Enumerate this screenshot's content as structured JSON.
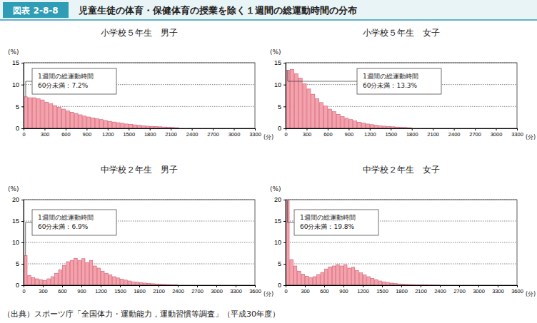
{
  "header": {
    "label": "図表 2-8-8",
    "title": "児童生徒の体育・保健体育の授業を除く１週間の総運動時間の分布"
  },
  "source": "（出典）スポーツ庁「全国体力・運動能力，運動習慣等調査」（平成30年度）",
  "chart_data": [
    {
      "type": "histogram",
      "title": "小学校５年生　男子",
      "y_label": "(%)",
      "x_label": "(分)",
      "annotation": [
        "1週間の総運動時間",
        "60分未満：7.2%"
      ],
      "bins": [
        0,
        60,
        120,
        180,
        240,
        300,
        360,
        420,
        480,
        540,
        600,
        660,
        720,
        780,
        840,
        900,
        960,
        1020,
        1080,
        1140,
        1200,
        1260,
        1320,
        1380,
        1440,
        1500,
        1560,
        1620,
        1680,
        1740,
        1800,
        1860,
        1920,
        1980,
        2040,
        2100,
        2160,
        2220
      ],
      "values": [
        7.2,
        7.0,
        7.0,
        6.8,
        6.5,
        6.0,
        5.6,
        5.2,
        4.8,
        4.4,
        4.0,
        3.7,
        3.4,
        3.1,
        2.8,
        2.6,
        2.4,
        2.2,
        2.0,
        1.8,
        1.6,
        1.45,
        1.3,
        1.15,
        1.0,
        0.9,
        0.8,
        0.7,
        0.6,
        0.5,
        0.45,
        0.4,
        0.35,
        0.3,
        0.25,
        0.2,
        0.15
      ],
      "color": "#f4a3ad",
      "xlim": [
        0,
        3300
      ],
      "xticks": [
        0,
        300,
        600,
        900,
        1200,
        1500,
        1800,
        2100,
        2400,
        2700,
        3000,
        3300
      ],
      "ylim": [
        0,
        15
      ],
      "yticks": [
        0,
        5,
        10,
        15
      ],
      "grid": true
    },
    {
      "type": "histogram",
      "title": "小学校５年生　女子",
      "y_label": "(%)",
      "x_label": "(分)",
      "annotation": [
        "1週間の総運動時間",
        "60分未満：13.3%"
      ],
      "bins": [
        0,
        60,
        120,
        180,
        240,
        300,
        360,
        420,
        480,
        540,
        600,
        660,
        720,
        780,
        840,
        900,
        960,
        1020,
        1080,
        1140,
        1200,
        1260,
        1320,
        1380,
        1440,
        1500,
        1560,
        1620,
        1680,
        1740,
        1800
      ],
      "values": [
        13.3,
        13.5,
        12.5,
        11.5,
        10.2,
        9.0,
        7.8,
        6.8,
        5.9,
        5.1,
        4.4,
        3.8,
        3.2,
        2.7,
        2.3,
        2.0,
        1.7,
        1.4,
        1.2,
        1.0,
        0.85,
        0.7,
        0.6,
        0.5,
        0.4,
        0.35,
        0.3,
        0.25,
        0.2,
        0.15
      ],
      "color": "#f4a3ad",
      "xlim": [
        0,
        3300
      ],
      "xticks": [
        0,
        300,
        600,
        900,
        1200,
        1500,
        1800,
        2100,
        2400,
        2700,
        3000,
        3300
      ],
      "ylim": [
        0,
        15
      ],
      "yticks": [
        0,
        5,
        10,
        15
      ],
      "grid": true
    },
    {
      "type": "histogram",
      "title": "中学校２年生　男子",
      "y_label": "(%)",
      "x_label": "(分)",
      "annotation": [
        "1週間の総運動時間",
        "60分未満：6.9%"
      ],
      "bins": [
        0,
        60,
        120,
        180,
        240,
        300,
        360,
        420,
        480,
        540,
        600,
        660,
        720,
        780,
        840,
        900,
        960,
        1020,
        1080,
        1140,
        1200,
        1260,
        1320,
        1380,
        1440,
        1500,
        1560,
        1620,
        1680,
        1740,
        1800,
        1860,
        1920,
        1980,
        2040,
        2100,
        2160,
        2220,
        2280,
        2340,
        2400
      ],
      "values": [
        6.9,
        2.3,
        1.8,
        1.5,
        1.3,
        1.1,
        1.5,
        2.0,
        2.8,
        3.6,
        4.6,
        5.5,
        5.8,
        6.3,
        5.8,
        6.2,
        5.3,
        5.8,
        4.5,
        4.0,
        3.3,
        2.8,
        2.4,
        2.0,
        1.7,
        1.4,
        1.2,
        1.0,
        0.8,
        0.7,
        0.6,
        0.5,
        0.4,
        0.35,
        0.3,
        0.25,
        0.2,
        0.15,
        0.1,
        0.1
      ],
      "color": "#f4a3ad",
      "xlim": [
        0,
        3600
      ],
      "xticks": [
        0,
        300,
        600,
        900,
        1200,
        1500,
        1800,
        2100,
        2400,
        2700,
        3000,
        3300,
        3600
      ],
      "ylim": [
        0,
        20
      ],
      "yticks": [
        0,
        5,
        10,
        15,
        20
      ],
      "grid": true
    },
    {
      "type": "histogram",
      "title": "中学校２年生　女子",
      "y_label": "(%)",
      "x_label": "(分)",
      "annotation": [
        "1週間の総運動時間",
        "60分未満：19.8%"
      ],
      "bins": [
        0,
        60,
        120,
        180,
        240,
        300,
        360,
        420,
        480,
        540,
        600,
        660,
        720,
        780,
        840,
        900,
        960,
        1020,
        1080,
        1140,
        1200,
        1260,
        1320,
        1380,
        1440,
        1500,
        1560,
        1620,
        1680,
        1740,
        1800,
        1860,
        1920,
        1980,
        2040,
        2100,
        2160,
        2220,
        2280,
        2340,
        2400
      ],
      "values": [
        19.8,
        6.0,
        4.5,
        3.3,
        2.6,
        2.1,
        1.8,
        2.0,
        2.5,
        3.0,
        3.8,
        4.3,
        4.5,
        4.8,
        4.5,
        4.8,
        4.0,
        4.2,
        3.4,
        2.9,
        2.4,
        2.0,
        1.6,
        1.3,
        1.0,
        0.8,
        0.65,
        0.5,
        0.4,
        0.3,
        0.25,
        0.2,
        0.15,
        0.12,
        0.1,
        0.08,
        0.06,
        0.05,
        0.04,
        0.03
      ],
      "color": "#f4a3ad",
      "xlim": [
        0,
        3600
      ],
      "xticks": [
        0,
        300,
        600,
        900,
        1200,
        1500,
        1800,
        2100,
        2400,
        2700,
        3000,
        3300,
        3600
      ],
      "ylim": [
        0,
        20
      ],
      "yticks": [
        0,
        5,
        10,
        15,
        20
      ],
      "grid": true
    }
  ]
}
